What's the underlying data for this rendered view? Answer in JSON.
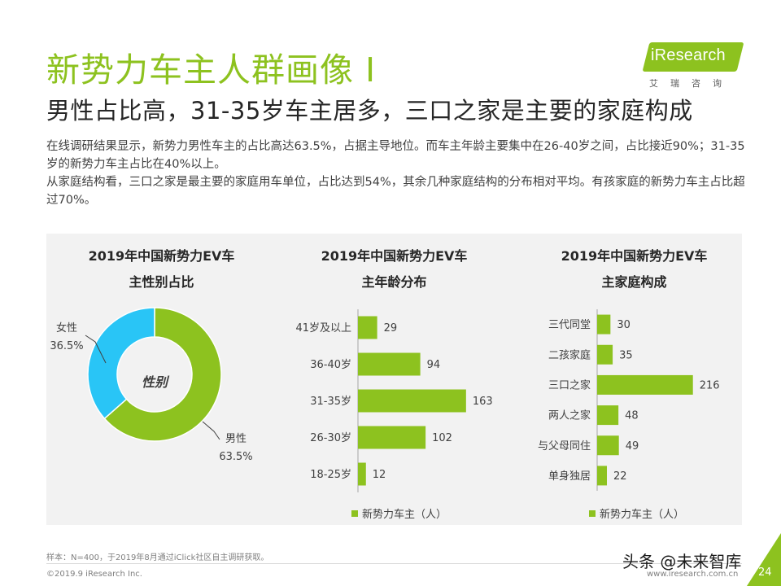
{
  "header": {
    "title": "新势力车主人群画像 I",
    "subtitle": "男性占比高，31-35岁车主居多，三口之家是主要的家庭构成",
    "desc_line1": "在线调研结果显示，新势力男性车主的占比高达63.5%，占据主导地位。而车主年龄主要集中在26-40岁之间，占比接近90%；31-35岁的新势力车主占比在40%以上。",
    "desc_line2": "从家庭结构看，三口之家是最主要的家庭用车单位，占比达到54%，其余几种家庭结构的分布相对平均。有孩家庭的新势力车主占比超过70%。"
  },
  "logo": {
    "text": "iResearch",
    "cn": "艾瑞咨询"
  },
  "colors": {
    "green": "#8dc21f",
    "blue": "#29c5f6",
    "panel": "#f2f2f2"
  },
  "chart_data": [
    {
      "type": "pie",
      "title_line1": "2019年中国新势力EV车",
      "title_line2": "主性别占比",
      "center_label": "性别",
      "slices": [
        {
          "label": "男性",
          "value": 63.5,
          "value_label": "63.5%",
          "color": "#8dc21f"
        },
        {
          "label": "女性",
          "value": 36.5,
          "value_label": "36.5%",
          "color": "#29c5f6"
        }
      ]
    },
    {
      "type": "bar",
      "orientation": "horizontal",
      "title_line1": "2019年中国新势力EV车",
      "title_line2": "主年龄分布",
      "categories": [
        "41岁及以上",
        "36-40岁",
        "31-35岁",
        "26-30岁",
        "18-25岁"
      ],
      "values": [
        29,
        94,
        163,
        102,
        12
      ],
      "series_name": "新势力车主（人）",
      "color": "#8dc21f"
    },
    {
      "type": "bar",
      "orientation": "horizontal",
      "title_line1": "2019年中国新势力EV车",
      "title_line2": "主家庭构成",
      "categories": [
        "三代同堂",
        "二孩家庭",
        "三口之家",
        "两人之家",
        "与父母同住",
        "单身独居"
      ],
      "values": [
        30,
        35,
        216,
        48,
        49,
        22
      ],
      "series_name": "新势力车主（人）",
      "color": "#8dc21f"
    }
  ],
  "footer": {
    "note": "样本：N=400，于2019年8月通过iClick社区自主调研获取。",
    "copyright": "©2019.9  iResearch Inc.",
    "site": "www.iresearch.com.cn",
    "page": "24",
    "watermark": "头条 @未来智库"
  }
}
